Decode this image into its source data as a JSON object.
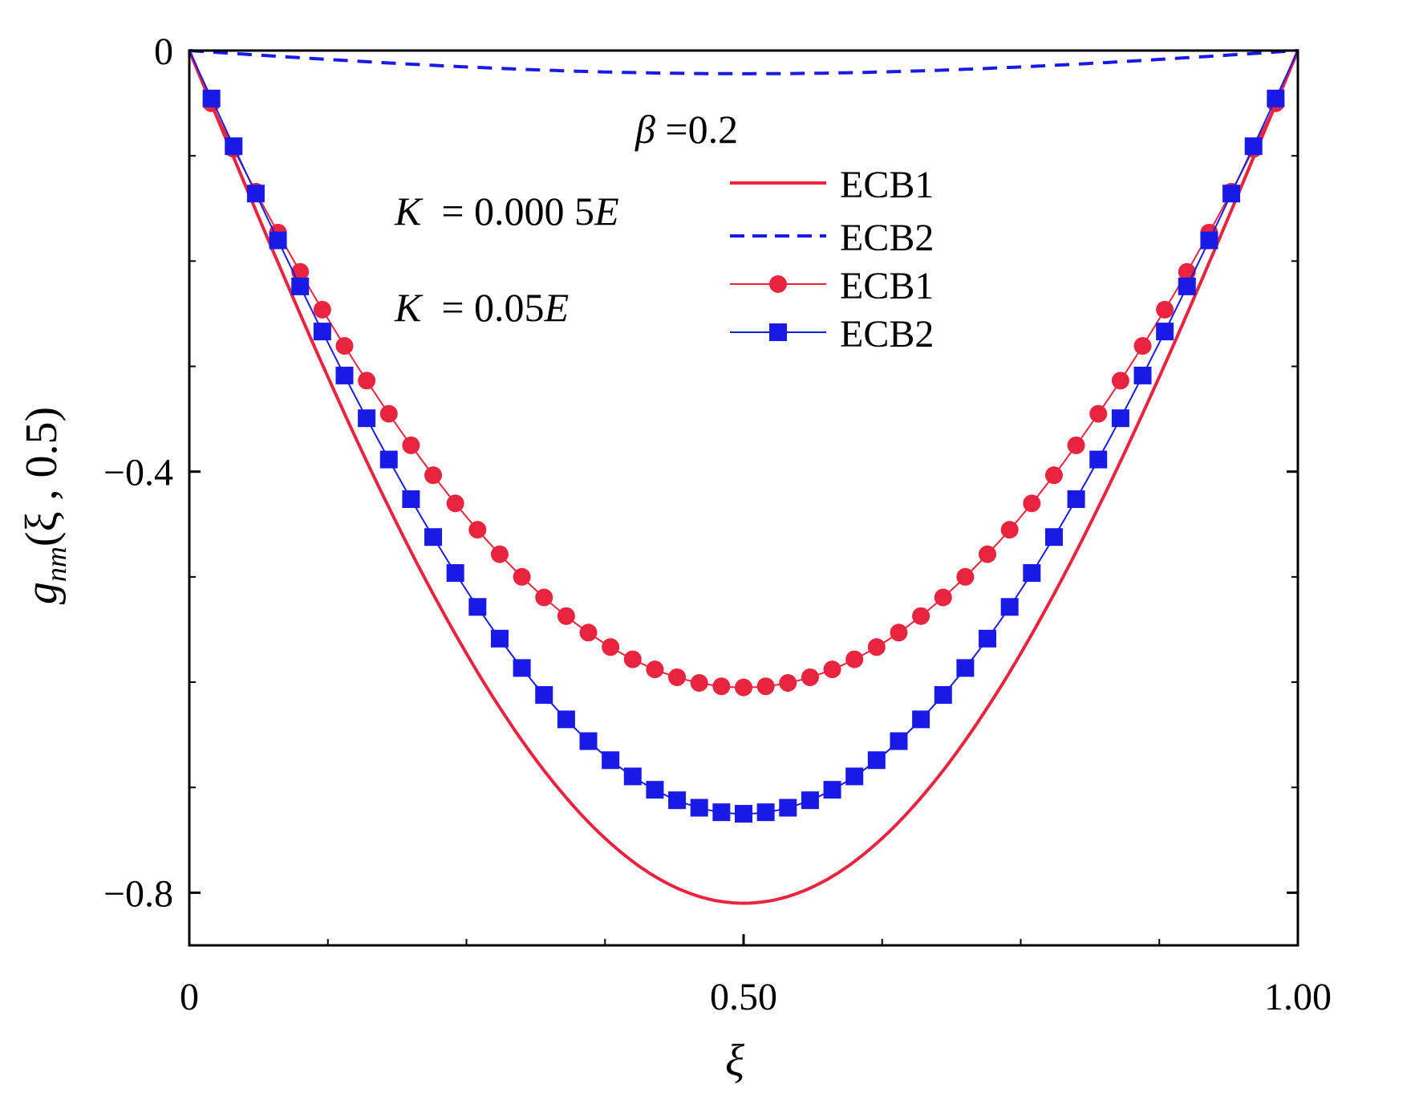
{
  "chart_data": {
    "type": "line",
    "xlabel": "ξ",
    "ylabel": {
      "main": "g",
      "sub": "nm",
      "args": "(ξ , 0.5)"
    },
    "xlim": [
      0,
      1
    ],
    "ylim": [
      -0.85,
      0
    ],
    "x_ticks": [
      {
        "value": 0,
        "label": "0"
      },
      {
        "value": 0.5,
        "label": "0.50"
      },
      {
        "value": 1,
        "label": "1.00"
      }
    ],
    "y_ticks": [
      {
        "value": 0,
        "label": "0"
      },
      {
        "value": -0.4,
        "label": "−0.4"
      },
      {
        "value": -0.8,
        "label": "−0.8"
      }
    ],
    "x_minor_ticks": [
      0.125,
      0.25,
      0.375,
      0.625,
      0.75,
      0.875
    ],
    "y_minor_ticks": [
      -0.1,
      -0.2,
      -0.3,
      -0.5,
      -0.6,
      -0.7
    ],
    "annotations": {
      "beta": {
        "symbol": "β",
        "text": " =0.2"
      },
      "k1": {
        "symbol": "K",
        "text": "  = 0.000 5",
        "unit": "E"
      },
      "k2": {
        "symbol": "K",
        "text": "  = 0.05",
        "unit": "E"
      }
    },
    "legend": {
      "position": "top-center"
    },
    "series": [
      {
        "name": "ECB1",
        "color": "#e8243e",
        "style": "solid",
        "marker": "none",
        "peak": -0.81,
        "shape_exp": 1.0
      },
      {
        "name": "ECB2",
        "color": "#1a1ae6",
        "style": "dashed",
        "marker": "none",
        "peak": -0.022,
        "shape_exp": 1.0
      },
      {
        "name": "ECB1",
        "color": "#e8243e",
        "style": "solid",
        "marker": "circle",
        "peak": -0.605,
        "shape_exp": 0.9
      },
      {
        "name": "ECB2",
        "color": "#1a1ae6",
        "style": "solid",
        "marker": "square",
        "peak": -0.725,
        "shape_exp": 1.0
      }
    ]
  }
}
